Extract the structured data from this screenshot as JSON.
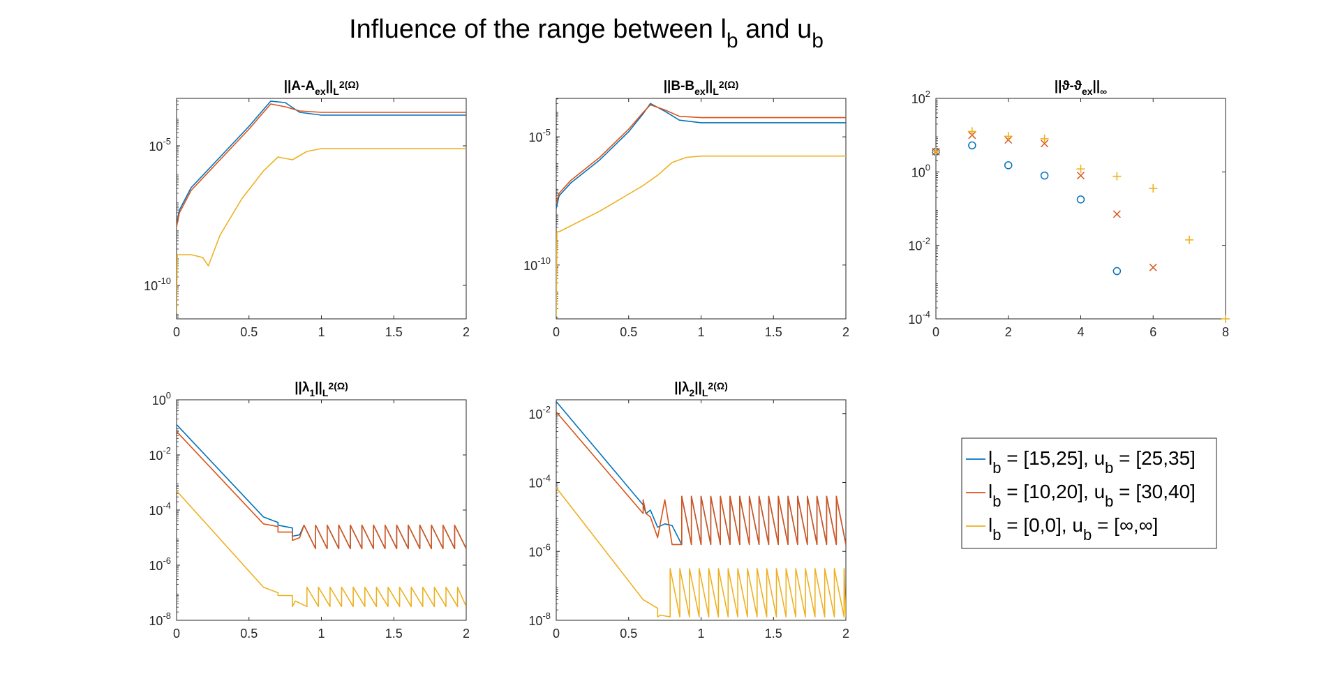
{
  "figure": {
    "title": "Influence of the range between l",
    "title_sub": "b",
    "title_mid": " and u",
    "title_sub2": "b"
  },
  "colors": {
    "blue": "#0072BD",
    "red": "#D95319",
    "yellow": "#EDB120"
  },
  "legend": {
    "items": [
      {
        "color": "#0072BD",
        "label": "l_b = [15,25], u_b = [25,35]"
      },
      {
        "color": "#D95319",
        "label": "l_b = [10,20], u_b = [30,40]"
      },
      {
        "color": "#EDB120",
        "label": "l_b = [0,0], u_b = [∞,∞]"
      }
    ]
  },
  "chart_data": [
    {
      "type": "line",
      "title": "||A-A_ex||_L^2(Ω)",
      "yscale": "log",
      "xlim": [
        0,
        2
      ],
      "ylim_log10": [
        -11.2,
        -3.3
      ],
      "xticks": [
        0,
        0.5,
        1,
        1.5,
        2
      ],
      "xtick_labels": [
        "0",
        "0.5",
        "1",
        "1.5",
        "2"
      ],
      "yticks_log10": [
        -10,
        -5
      ],
      "ytick_labels": [
        "10^-10",
        "10^-5"
      ],
      "series": [
        {
          "color": "#0072BD",
          "x": [
            0,
            0.02,
            0.1,
            0.3,
            0.5,
            0.6,
            0.65,
            0.75,
            0.85,
            1.0,
            2.0
          ],
          "log10y": [
            -7.8,
            -7.3,
            -6.5,
            -5.4,
            -4.3,
            -3.7,
            -3.4,
            -3.45,
            -3.8,
            -3.9,
            -3.9
          ]
        },
        {
          "color": "#D95319",
          "x": [
            0,
            0.02,
            0.1,
            0.3,
            0.5,
            0.6,
            0.65,
            0.75,
            0.85,
            1.0,
            2.0
          ],
          "log10y": [
            -7.9,
            -7.4,
            -6.6,
            -5.5,
            -4.4,
            -3.8,
            -3.5,
            -3.6,
            -3.75,
            -3.8,
            -3.8
          ]
        },
        {
          "color": "#EDB120",
          "x": [
            0,
            0.005,
            0.1,
            0.18,
            0.22,
            0.3,
            0.45,
            0.6,
            0.7,
            0.8,
            0.9,
            1.0,
            2.0
          ],
          "log10y": [
            -11.0,
            -8.9,
            -8.9,
            -9.0,
            -9.3,
            -8.2,
            -6.9,
            -5.9,
            -5.4,
            -5.5,
            -5.2,
            -5.1,
            -5.1
          ]
        }
      ]
    },
    {
      "type": "line",
      "title": "||B-B_ex||_L^2(Ω)",
      "yscale": "log",
      "xlim": [
        0,
        2
      ],
      "ylim_log10": [
        -12.1,
        -3.5
      ],
      "xticks": [
        0,
        0.5,
        1,
        1.5,
        2
      ],
      "xtick_labels": [
        "0",
        "0.5",
        "1",
        "1.5",
        "2"
      ],
      "yticks_log10": [
        -10,
        -5
      ],
      "ytick_labels": [
        "10^-10",
        "10^-5"
      ],
      "series": [
        {
          "color": "#0072BD",
          "x": [
            0,
            0.02,
            0.1,
            0.3,
            0.5,
            0.6,
            0.65,
            0.75,
            0.85,
            1.0,
            2.0
          ],
          "log10y": [
            -7.8,
            -7.3,
            -6.8,
            -5.9,
            -4.8,
            -4.1,
            -3.7,
            -4.0,
            -4.35,
            -4.45,
            -4.45
          ]
        },
        {
          "color": "#D95319",
          "x": [
            0,
            0.02,
            0.1,
            0.3,
            0.5,
            0.6,
            0.65,
            0.75,
            0.85,
            1.0,
            2.0
          ],
          "log10y": [
            -7.6,
            -7.2,
            -6.7,
            -5.8,
            -4.7,
            -4.05,
            -3.75,
            -3.95,
            -4.2,
            -4.25,
            -4.25
          ]
        },
        {
          "color": "#EDB120",
          "x": [
            0,
            0.005,
            0.02,
            0.3,
            0.6,
            0.7,
            0.8,
            0.9,
            1.0,
            2.0
          ],
          "log10y": [
            -12.0,
            -8.7,
            -8.7,
            -7.9,
            -6.9,
            -6.5,
            -6.0,
            -5.8,
            -5.75,
            -5.75
          ]
        }
      ]
    },
    {
      "type": "scatter",
      "title": "||ϑ-ϑ_ex||_∞",
      "yscale": "log",
      "xlim": [
        0,
        8
      ],
      "ylim_log10": [
        -4,
        2
      ],
      "xticks": [
        0,
        2,
        4,
        6,
        8
      ],
      "xtick_labels": [
        "0",
        "2",
        "4",
        "6",
        "8"
      ],
      "yticks_log10": [
        -4,
        -2,
        0,
        2
      ],
      "ytick_labels": [
        "10^-4",
        "10^-2",
        "10^0",
        "10^2"
      ],
      "series": [
        {
          "color": "#0072BD",
          "marker": "o",
          "x": [
            0,
            1,
            2,
            3,
            4,
            5
          ],
          "log10y": [
            0.55,
            0.72,
            0.18,
            -0.1,
            -0.75,
            -2.7
          ]
        },
        {
          "color": "#D95319",
          "marker": "x",
          "x": [
            0,
            1,
            2,
            3,
            4,
            5,
            6
          ],
          "log10y": [
            0.55,
            1.0,
            0.87,
            0.77,
            -0.1,
            -1.15,
            -2.6
          ]
        },
        {
          "color": "#EDB120",
          "marker": "+",
          "x": [
            0,
            1,
            2,
            3,
            4,
            5,
            6,
            7,
            8
          ],
          "log10y": [
            0.55,
            1.1,
            0.97,
            0.9,
            0.08,
            -0.12,
            -0.45,
            -1.85,
            -4.0
          ]
        }
      ]
    },
    {
      "type": "line",
      "title": "||λ_1||_L^2(Ω)",
      "yscale": "log",
      "xlim": [
        0,
        2
      ],
      "ylim_log10": [
        -8,
        0
      ],
      "xticks": [
        0,
        0.5,
        1,
        1.5,
        2
      ],
      "xtick_labels": [
        "0",
        "0.5",
        "1",
        "1.5",
        "2"
      ],
      "yticks_log10": [
        -8,
        -6,
        -4,
        -2,
        0
      ],
      "ytick_labels": [
        "10^-8",
        "10^-6",
        "10^-4",
        "10^-2",
        "10^0"
      ],
      "series": [
        {
          "color": "#0072BD",
          "x": [
            0,
            0.6,
            0.7,
            0.7,
            0.8,
            0.8,
            0.85,
            0.88
          ],
          "log10y": [
            -0.9,
            -4.25,
            -4.45,
            -4.55,
            -4.65,
            -4.95,
            -4.9,
            -4.55
          ],
          "saw": {
            "start": 0.88,
            "end": 2.0,
            "period": 0.08,
            "hi": -4.55,
            "lo": -5.4
          }
        },
        {
          "color": "#D95319",
          "x": [
            0,
            0.6,
            0.7,
            0.7,
            0.8,
            0.8,
            0.85,
            0.88
          ],
          "log10y": [
            -1.15,
            -4.5,
            -4.6,
            -4.8,
            -4.8,
            -5.1,
            -5.0,
            -4.55
          ],
          "saw": {
            "start": 0.88,
            "end": 2.0,
            "period": 0.08,
            "hi": -4.55,
            "lo": -5.4
          }
        },
        {
          "color": "#EDB120",
          "x": [
            0,
            0.6,
            0.7,
            0.7,
            0.8,
            0.8,
            0.82
          ],
          "log10y": [
            -3.3,
            -6.8,
            -7.0,
            -7.1,
            -7.1,
            -7.5,
            -7.3
          ],
          "saw": {
            "start": 0.82,
            "end": 2.0,
            "period": 0.08,
            "hi": -6.8,
            "lo": -7.5
          }
        }
      ]
    },
    {
      "type": "line",
      "title": "||λ_2||_L^2(Ω)",
      "yscale": "log",
      "xlim": [
        0,
        2
      ],
      "ylim_log10": [
        -8,
        -1.6
      ],
      "xticks": [
        0,
        0.5,
        1,
        1.5,
        2
      ],
      "xtick_labels": [
        "0",
        "0.5",
        "1",
        "1.5",
        "2"
      ],
      "yticks_log10": [
        -8,
        -6,
        -4,
        -2
      ],
      "ytick_labels": [
        "10^-8",
        "10^-6",
        "10^-4",
        "10^-2"
      ],
      "series": [
        {
          "color": "#0072BD",
          "x": [
            0,
            0.6,
            0.62,
            0.65,
            0.7,
            0.75,
            0.8
          ],
          "log10y": [
            -1.65,
            -4.65,
            -4.9,
            -4.8,
            -5.3,
            -5.2,
            -5.25
          ],
          "saw": {
            "start": 0.8,
            "end": 2.0,
            "period": 0.0667,
            "hi": -4.4,
            "lo": -5.8
          }
        },
        {
          "color": "#D95319",
          "x": [
            0,
            0.6,
            0.6,
            0.62,
            0.65,
            0.7,
            0.75,
            0.8
          ],
          "log10y": [
            -1.95,
            -4.9,
            -4.5,
            -4.9,
            -5.0,
            -5.6,
            -4.5,
            -5.8
          ],
          "saw": {
            "start": 0.8,
            "end": 2.0,
            "period": 0.0667,
            "hi": -4.4,
            "lo": -5.8
          }
        },
        {
          "color": "#EDB120",
          "x": [
            0,
            0.6,
            0.7,
            0.7,
            0.72
          ],
          "log10y": [
            -4.15,
            -7.4,
            -7.65,
            -7.9,
            -7.85
          ],
          "saw": {
            "start": 0.72,
            "end": 2.0,
            "period": 0.0667,
            "hi": -6.5,
            "lo": -7.9
          }
        }
      ]
    }
  ]
}
